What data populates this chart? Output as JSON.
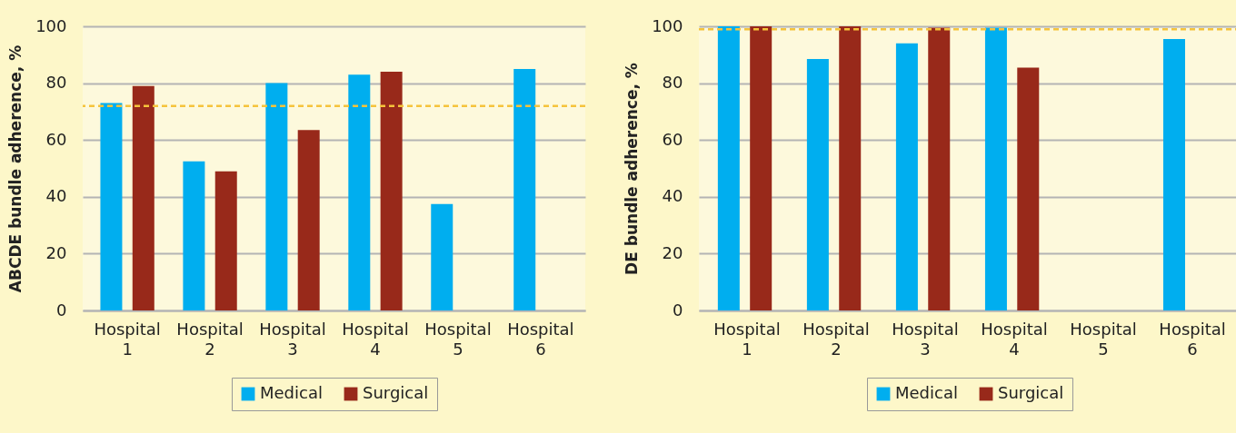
{
  "chart_data": [
    {
      "type": "bar",
      "ylabel": "ABCDE bundle adherence, %",
      "categories": [
        "Hospital 1",
        "Hospital 2",
        "Hospital 3",
        "Hospital 4",
        "Hospital 5",
        "Hospital 6"
      ],
      "series": [
        {
          "name": "Medical",
          "color": "#00aeef",
          "values": [
            73,
            52.5,
            80,
            83,
            37.5,
            85
          ]
        },
        {
          "name": "Surgical",
          "color": "#98291a",
          "values": [
            79,
            49,
            63.5,
            84,
            null,
            null
          ]
        }
      ],
      "ylim": [
        0,
        100
      ],
      "yticks": [
        0,
        20,
        40,
        60,
        80,
        100
      ],
      "grid": "y",
      "legend": "bottom",
      "ref_lines": [
        {
          "axis": "y",
          "value": 72,
          "color": "#f5c33b",
          "line_style": "dashed"
        }
      ]
    },
    {
      "type": "bar",
      "ylabel": "DE bundle adherence, %",
      "categories": [
        "Hospital 1",
        "Hospital 2",
        "Hospital 3",
        "Hospital 4",
        "Hospital 5",
        "Hospital 6"
      ],
      "series": [
        {
          "name": "Medical",
          "color": "#00aeef",
          "values": [
            100,
            88.5,
            94,
            99.5,
            null,
            95.5
          ]
        },
        {
          "name": "Surgical",
          "color": "#98291a",
          "values": [
            100,
            100,
            99.5,
            85.5,
            null,
            null
          ]
        }
      ],
      "ylim": [
        0,
        100
      ],
      "yticks": [
        0,
        20,
        40,
        60,
        80,
        100
      ],
      "grid": "y",
      "legend": "bottom",
      "ref_lines": [
        {
          "axis": "y",
          "value": 99,
          "color": "#f5c33b",
          "line_style": "dashed"
        }
      ]
    }
  ]
}
